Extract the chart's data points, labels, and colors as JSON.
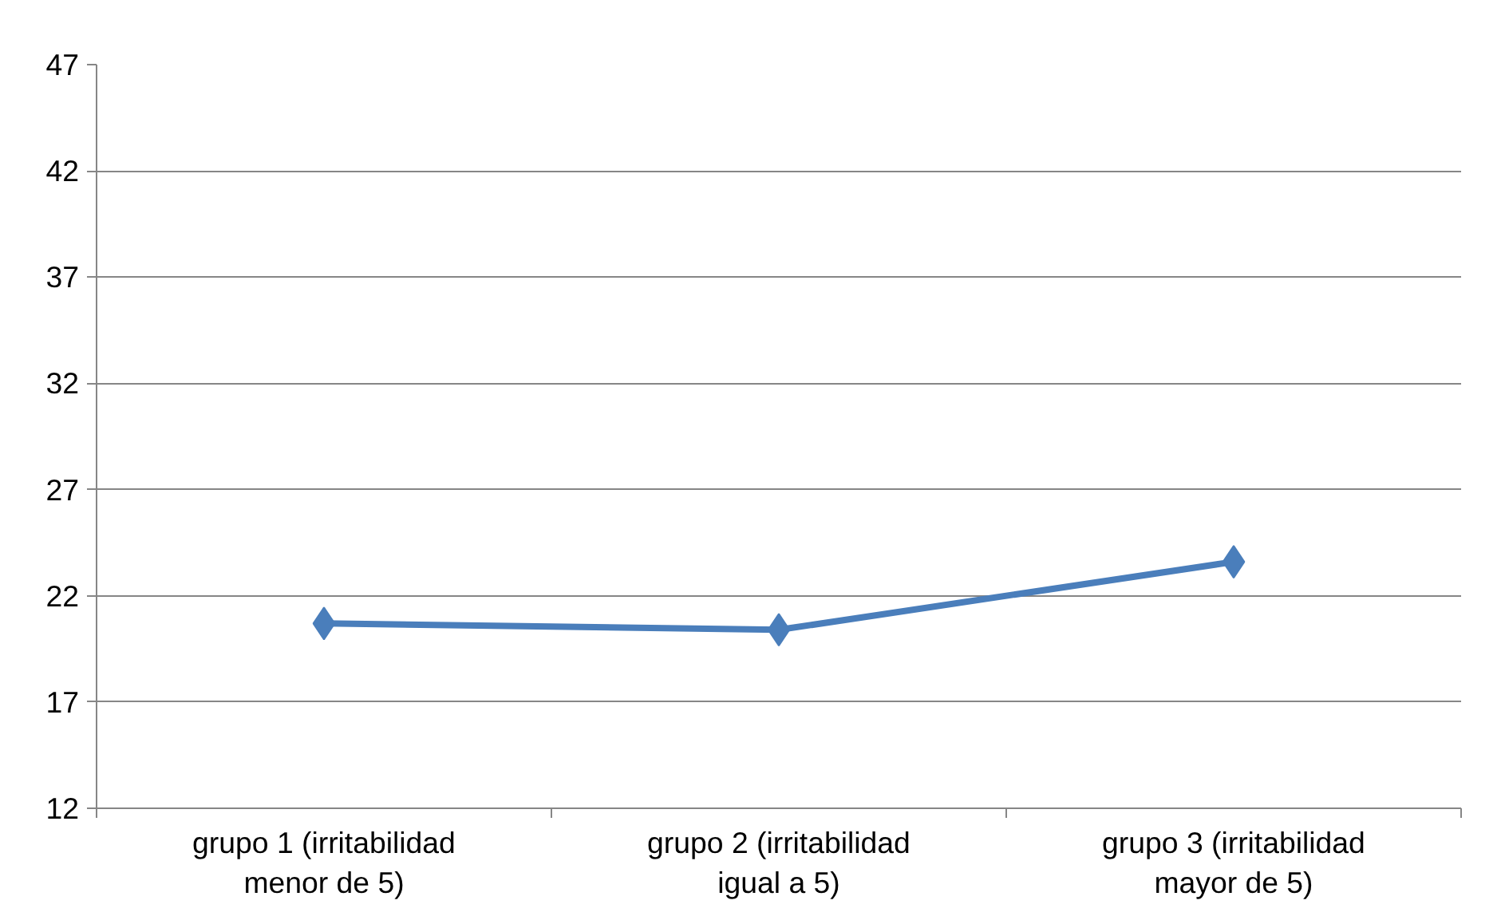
{
  "chart_data": {
    "type": "line",
    "categories": [
      "grupo 1 (irritabilidad menor de 5)",
      "grupo 2 (irritabilidad igual a 5)",
      "grupo 3 (irritabilidad mayor de 5)"
    ],
    "series": [
      {
        "color": "#4a7ebb",
        "values": [
          20.7,
          20.4,
          23.6
        ]
      }
    ],
    "ylim": [
      12,
      47
    ],
    "yticks": [
      12,
      17,
      22,
      27,
      32,
      37,
      42,
      47
    ],
    "grid": "y",
    "marker": "diamond",
    "line_style": "solid"
  }
}
